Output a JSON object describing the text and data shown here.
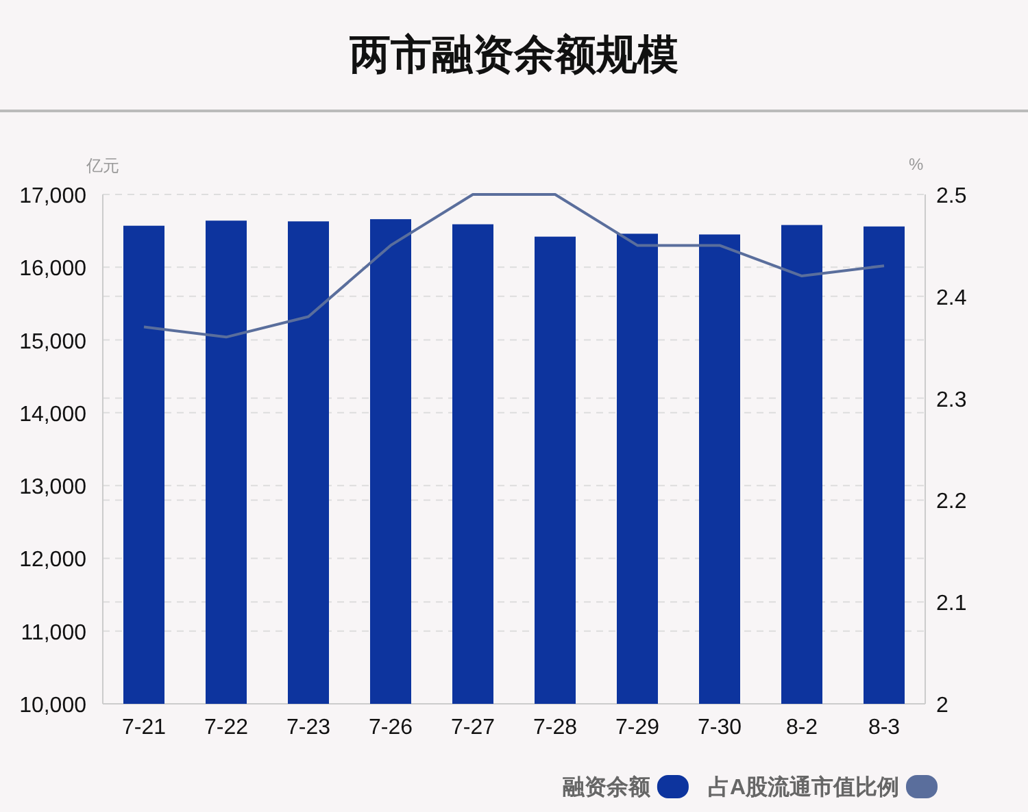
{
  "chart_data": {
    "type": "bar",
    "title": "两市融资余额规模",
    "ylabel": "亿元",
    "y2label": "%",
    "categories": [
      "7-21",
      "7-22",
      "7-23",
      "7-26",
      "7-27",
      "7-28",
      "7-29",
      "7-30",
      "8-2",
      "8-3"
    ],
    "series": [
      {
        "name": "融资余额",
        "color": "#0d349e",
        "values": [
          16570,
          16640,
          16630,
          16660,
          16590,
          16420,
          16460,
          16450,
          16580,
          16560
        ]
      },
      {
        "name": "占A股流通市值比例",
        "type": "line",
        "axis": "y2",
        "color": "#5a6e9c",
        "values": [
          2.37,
          2.36,
          2.38,
          2.45,
          2.5,
          2.5,
          2.45,
          2.45,
          2.42,
          2.43
        ]
      }
    ],
    "ylim": [
      10000,
      17000
    ],
    "yticks": [
      {
        "value": 10000,
        "label": "10,000"
      },
      {
        "value": 11000,
        "label": "11,000"
      },
      {
        "value": 12000,
        "label": "12,000"
      },
      {
        "value": 13000,
        "label": "13,000"
      },
      {
        "value": 14000,
        "label": "14,000"
      },
      {
        "value": 15000,
        "label": "15,000"
      },
      {
        "value": 16000,
        "label": "16,000"
      },
      {
        "value": 17000,
        "label": "17,000"
      }
    ],
    "y2lim": [
      2,
      2.5
    ],
    "y2ticks": [
      2,
      2.1,
      2.2,
      2.3,
      2.4,
      2.5
    ],
    "grid": true,
    "legend": "bottom right",
    "marker": "none",
    "line_style": "solid"
  }
}
